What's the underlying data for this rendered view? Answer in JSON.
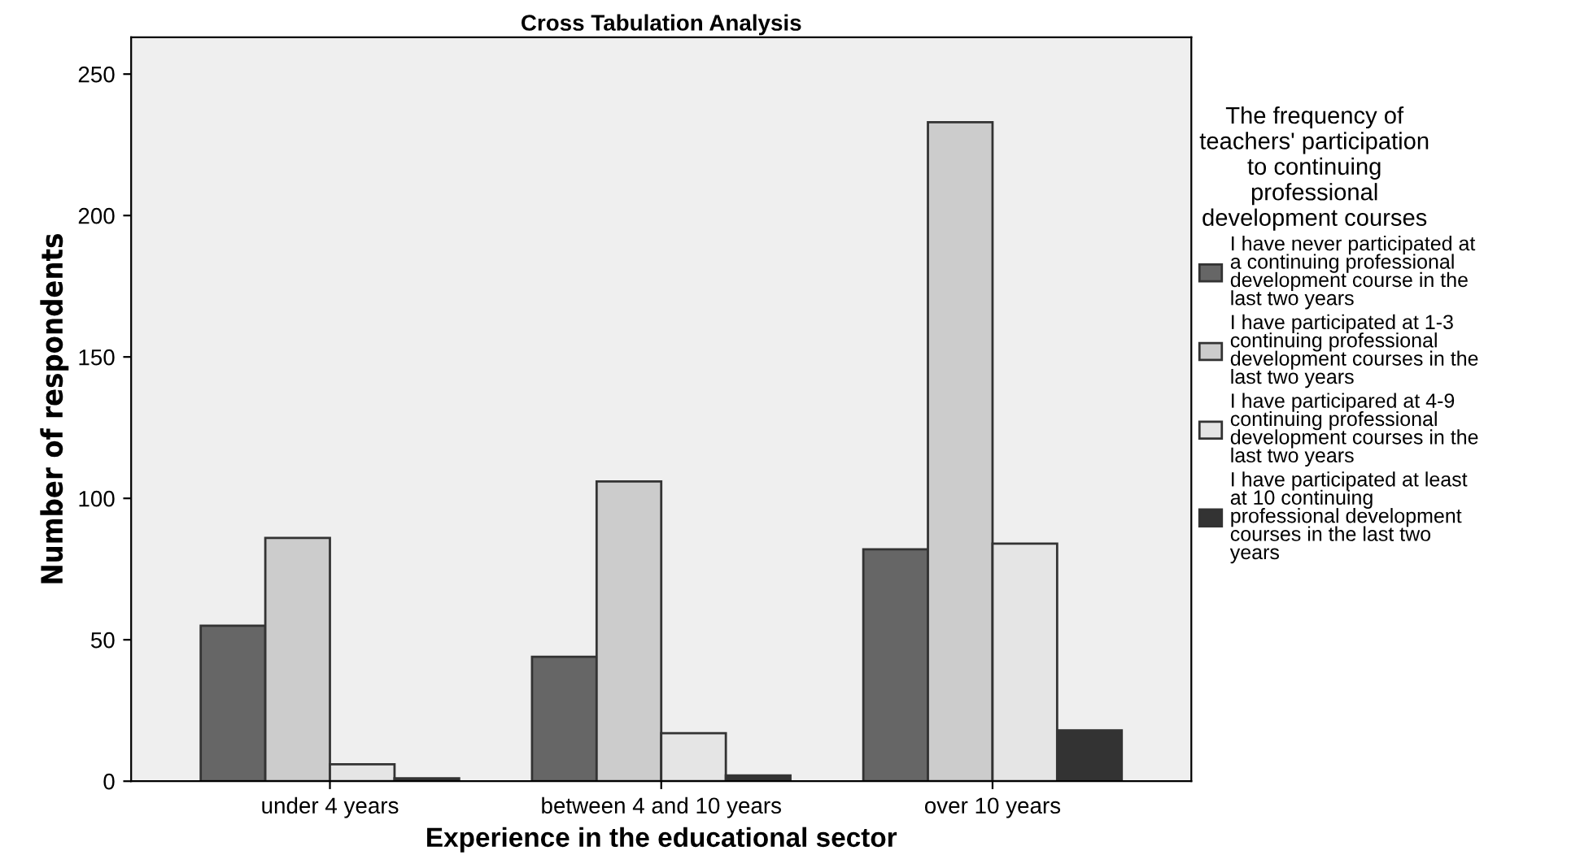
{
  "chart_data": {
    "type": "bar",
    "title": "Cross Tabulation Analysis",
    "xlabel": "Experience in the educational sector",
    "ylabel": "Number of respondents",
    "legend_title": "The frequency of\nteachers' participation\nto continuing\nprofessional\ndevelopment courses",
    "categories": [
      "under 4 years",
      "between 4 and 10 years",
      "over 10 years"
    ],
    "series": [
      {
        "name": "I have never participated at\na continuing professional\ndevelopment course in the\nlast two years",
        "color": "#666666",
        "values": [
          55,
          44,
          82
        ]
      },
      {
        "name": "I have participated at 1-3\ncontinuing professional\ndevelopment courses in the\nlast two years",
        "color": "#cccccc",
        "values": [
          86,
          106,
          233
        ]
      },
      {
        "name": "I have participared at 4-9\ncontinuing professional\ndevelopment courses in the\nlast two years",
        "color": "#e5e5e5",
        "values": [
          6,
          17,
          84
        ]
      },
      {
        "name": "I have participated at least\nat 10 continuing\nprofessional development\ncourses in the last two\nyears",
        "color": "#333333",
        "values": [
          1,
          2,
          18
        ]
      }
    ],
    "ylim": [
      0,
      263
    ],
    "yticks": [
      0,
      50,
      100,
      150,
      200,
      250
    ],
    "grid": false,
    "legend": "right"
  }
}
